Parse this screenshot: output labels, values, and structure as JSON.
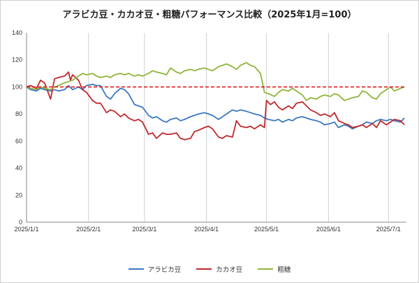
{
  "chart_data": {
    "type": "line",
    "title": "アラビカ豆・カカオ豆・粗糖パフォーマンス比較（2025年1月=100）",
    "xlabel": "",
    "ylabel": "",
    "ylim": [
      0,
      140
    ],
    "yticks": [
      0,
      20,
      40,
      60,
      80,
      100,
      120,
      140
    ],
    "xlim": [
      "2025-01-01",
      "2025-07-10"
    ],
    "xticks": [
      {
        "date": "2025-01-01",
        "label": "2025/1/1"
      },
      {
        "date": "2025-02-01",
        "label": "2025/2/1"
      },
      {
        "date": "2025-03-01",
        "label": "2025/3/1"
      },
      {
        "date": "2025-04-01",
        "label": "2025/4/1"
      },
      {
        "date": "2025-05-01",
        "label": "2025/5/1"
      },
      {
        "date": "2025-06-01",
        "label": "2025/6/1"
      },
      {
        "date": "2025-07-01",
        "label": "2025/7/1"
      }
    ],
    "grid": "vertical",
    "legend": "bottom",
    "reference_line": {
      "value": 100,
      "color": "#e31a1c",
      "style": "dashed"
    },
    "series": [
      {
        "name": "アラビカ豆",
        "color": "#3a78c2",
        "points": [
          [
            "2025-01-01",
            100
          ],
          [
            "2025-01-03",
            98
          ],
          [
            "2025-01-06",
            97
          ],
          [
            "2025-01-08",
            99
          ],
          [
            "2025-01-10",
            98
          ],
          [
            "2025-01-13",
            97
          ],
          [
            "2025-01-15",
            98
          ],
          [
            "2025-01-17",
            97
          ],
          [
            "2025-01-20",
            98
          ],
          [
            "2025-01-22",
            101
          ],
          [
            "2025-01-24",
            98
          ],
          [
            "2025-01-27",
            100
          ],
          [
            "2025-01-29",
            98
          ],
          [
            "2025-01-31",
            101
          ],
          [
            "2025-02-03",
            102
          ],
          [
            "2025-02-05",
            101
          ],
          [
            "2025-02-07",
            101
          ],
          [
            "2025-02-10",
            93
          ],
          [
            "2025-02-12",
            91
          ],
          [
            "2025-02-14",
            95
          ],
          [
            "2025-02-17",
            99
          ],
          [
            "2025-02-19",
            98
          ],
          [
            "2025-02-21",
            95
          ],
          [
            "2025-02-24",
            87
          ],
          [
            "2025-02-26",
            86
          ],
          [
            "2025-02-28",
            85
          ],
          [
            "2025-03-03",
            79
          ],
          [
            "2025-03-05",
            77
          ],
          [
            "2025-03-07",
            78
          ],
          [
            "2025-03-10",
            75
          ],
          [
            "2025-03-12",
            74
          ],
          [
            "2025-03-14",
            76
          ],
          [
            "2025-03-17",
            77
          ],
          [
            "2025-03-19",
            75
          ],
          [
            "2025-03-21",
            76
          ],
          [
            "2025-03-24",
            78
          ],
          [
            "2025-03-26",
            79
          ],
          [
            "2025-03-28",
            80
          ],
          [
            "2025-03-31",
            81
          ],
          [
            "2025-04-02",
            80
          ],
          [
            "2025-04-04",
            79
          ],
          [
            "2025-04-07",
            76
          ],
          [
            "2025-04-09",
            78
          ],
          [
            "2025-04-11",
            80
          ],
          [
            "2025-04-14",
            83
          ],
          [
            "2025-04-16",
            82
          ],
          [
            "2025-04-18",
            83
          ],
          [
            "2025-04-21",
            82
          ],
          [
            "2025-04-23",
            81
          ],
          [
            "2025-04-25",
            80
          ],
          [
            "2025-04-28",
            79
          ],
          [
            "2025-04-30",
            77
          ],
          [
            "2025-05-02",
            76
          ],
          [
            "2025-05-05",
            75
          ],
          [
            "2025-05-07",
            76
          ],
          [
            "2025-05-09",
            74
          ],
          [
            "2025-05-12",
            76
          ],
          [
            "2025-05-14",
            75
          ],
          [
            "2025-05-16",
            77
          ],
          [
            "2025-05-19",
            78
          ],
          [
            "2025-05-21",
            77
          ],
          [
            "2025-05-23",
            76
          ],
          [
            "2025-05-26",
            75
          ],
          [
            "2025-05-28",
            74
          ],
          [
            "2025-05-30",
            72
          ],
          [
            "2025-06-02",
            73
          ],
          [
            "2025-06-04",
            74
          ],
          [
            "2025-06-06",
            70
          ],
          [
            "2025-06-09",
            72
          ],
          [
            "2025-06-11",
            71
          ],
          [
            "2025-06-13",
            69
          ],
          [
            "2025-06-16",
            71
          ],
          [
            "2025-06-18",
            72
          ],
          [
            "2025-06-20",
            74
          ],
          [
            "2025-06-23",
            73
          ],
          [
            "2025-06-25",
            75
          ],
          [
            "2025-06-27",
            76
          ],
          [
            "2025-06-30",
            75
          ],
          [
            "2025-07-02",
            76
          ],
          [
            "2025-07-04",
            75
          ],
          [
            "2025-07-07",
            74
          ],
          [
            "2025-07-09",
            77
          ]
        ]
      },
      {
        "name": "カカオ豆",
        "color": "#c0282d",
        "points": [
          [
            "2025-01-01",
            100
          ],
          [
            "2025-01-03",
            101
          ],
          [
            "2025-01-06",
            99
          ],
          [
            "2025-01-08",
            105
          ],
          [
            "2025-01-10",
            103
          ],
          [
            "2025-01-13",
            91
          ],
          [
            "2025-01-15",
            106
          ],
          [
            "2025-01-17",
            107
          ],
          [
            "2025-01-20",
            108
          ],
          [
            "2025-01-22",
            111
          ],
          [
            "2025-01-23",
            105
          ],
          [
            "2025-01-24",
            109
          ],
          [
            "2025-01-27",
            105
          ],
          [
            "2025-01-29",
            98
          ],
          [
            "2025-01-31",
            96
          ],
          [
            "2025-02-03",
            90
          ],
          [
            "2025-02-05",
            88
          ],
          [
            "2025-02-07",
            88
          ],
          [
            "2025-02-10",
            81
          ],
          [
            "2025-02-12",
            83
          ],
          [
            "2025-02-14",
            82
          ],
          [
            "2025-02-17",
            78
          ],
          [
            "2025-02-19",
            80
          ],
          [
            "2025-02-21",
            77
          ],
          [
            "2025-02-24",
            75
          ],
          [
            "2025-02-26",
            76
          ],
          [
            "2025-02-28",
            74
          ],
          [
            "2025-03-03",
            65
          ],
          [
            "2025-03-05",
            66
          ],
          [
            "2025-03-07",
            62
          ],
          [
            "2025-03-10",
            66
          ],
          [
            "2025-03-12",
            65
          ],
          [
            "2025-03-14",
            65
          ],
          [
            "2025-03-17",
            66
          ],
          [
            "2025-03-19",
            62
          ],
          [
            "2025-03-21",
            61
          ],
          [
            "2025-03-24",
            62
          ],
          [
            "2025-03-26",
            67
          ],
          [
            "2025-03-28",
            68
          ],
          [
            "2025-03-31",
            70
          ],
          [
            "2025-04-02",
            71
          ],
          [
            "2025-04-04",
            69
          ],
          [
            "2025-04-07",
            63
          ],
          [
            "2025-04-09",
            62
          ],
          [
            "2025-04-11",
            64
          ],
          [
            "2025-04-14",
            63
          ],
          [
            "2025-04-16",
            75
          ],
          [
            "2025-04-18",
            71
          ],
          [
            "2025-04-21",
            70
          ],
          [
            "2025-04-23",
            71
          ],
          [
            "2025-04-25",
            69
          ],
          [
            "2025-04-28",
            72
          ],
          [
            "2025-04-30",
            70
          ],
          [
            "2025-05-01",
            90
          ],
          [
            "2025-05-03",
            87
          ],
          [
            "2025-05-05",
            89
          ],
          [
            "2025-05-07",
            85
          ],
          [
            "2025-05-09",
            83
          ],
          [
            "2025-05-12",
            86
          ],
          [
            "2025-05-14",
            84
          ],
          [
            "2025-05-16",
            88
          ],
          [
            "2025-05-19",
            89
          ],
          [
            "2025-05-21",
            86
          ],
          [
            "2025-05-23",
            83
          ],
          [
            "2025-05-26",
            81
          ],
          [
            "2025-05-28",
            79
          ],
          [
            "2025-05-30",
            80
          ],
          [
            "2025-06-02",
            78
          ],
          [
            "2025-06-04",
            81
          ],
          [
            "2025-06-06",
            75
          ],
          [
            "2025-06-09",
            73
          ],
          [
            "2025-06-11",
            72
          ],
          [
            "2025-06-13",
            70
          ],
          [
            "2025-06-16",
            71
          ],
          [
            "2025-06-18",
            72
          ],
          [
            "2025-06-20",
            70
          ],
          [
            "2025-06-23",
            73
          ],
          [
            "2025-06-25",
            70
          ],
          [
            "2025-06-27",
            75
          ],
          [
            "2025-06-30",
            72
          ],
          [
            "2025-07-02",
            74
          ],
          [
            "2025-07-04",
            76
          ],
          [
            "2025-07-07",
            75
          ],
          [
            "2025-07-09",
            72
          ]
        ]
      },
      {
        "name": "粗糖",
        "color": "#8fb53a",
        "points": [
          [
            "2025-01-01",
            100
          ],
          [
            "2025-01-03",
            99
          ],
          [
            "2025-01-06",
            98
          ],
          [
            "2025-01-08",
            100
          ],
          [
            "2025-01-10",
            99
          ],
          [
            "2025-01-13",
            98
          ],
          [
            "2025-01-15",
            100
          ],
          [
            "2025-01-17",
            101
          ],
          [
            "2025-01-20",
            103
          ],
          [
            "2025-01-22",
            104
          ],
          [
            "2025-01-24",
            105
          ],
          [
            "2025-01-27",
            108
          ],
          [
            "2025-01-29",
            110
          ],
          [
            "2025-01-31",
            109
          ],
          [
            "2025-02-03",
            110
          ],
          [
            "2025-02-05",
            108
          ],
          [
            "2025-02-07",
            107
          ],
          [
            "2025-02-10",
            108
          ],
          [
            "2025-02-12",
            107
          ],
          [
            "2025-02-14",
            109
          ],
          [
            "2025-02-17",
            110
          ],
          [
            "2025-02-19",
            109
          ],
          [
            "2025-02-21",
            110
          ],
          [
            "2025-02-24",
            108
          ],
          [
            "2025-02-26",
            109
          ],
          [
            "2025-02-28",
            108
          ],
          [
            "2025-03-03",
            110
          ],
          [
            "2025-03-05",
            112
          ],
          [
            "2025-03-07",
            111
          ],
          [
            "2025-03-10",
            110
          ],
          [
            "2025-03-12",
            109
          ],
          [
            "2025-03-14",
            114
          ],
          [
            "2025-03-17",
            111
          ],
          [
            "2025-03-19",
            110
          ],
          [
            "2025-03-21",
            112
          ],
          [
            "2025-03-24",
            113
          ],
          [
            "2025-03-26",
            112
          ],
          [
            "2025-03-28",
            113
          ],
          [
            "2025-03-31",
            114
          ],
          [
            "2025-04-02",
            113
          ],
          [
            "2025-04-04",
            112
          ],
          [
            "2025-04-07",
            115
          ],
          [
            "2025-04-09",
            116
          ],
          [
            "2025-04-11",
            117
          ],
          [
            "2025-04-14",
            115
          ],
          [
            "2025-04-16",
            113
          ],
          [
            "2025-04-18",
            116
          ],
          [
            "2025-04-21",
            118
          ],
          [
            "2025-04-23",
            116
          ],
          [
            "2025-04-25",
            115
          ],
          [
            "2025-04-28",
            110
          ],
          [
            "2025-04-30",
            96
          ],
          [
            "2025-05-02",
            95
          ],
          [
            "2025-05-05",
            93
          ],
          [
            "2025-05-07",
            96
          ],
          [
            "2025-05-09",
            98
          ],
          [
            "2025-05-12",
            97
          ],
          [
            "2025-05-14",
            99
          ],
          [
            "2025-05-16",
            97
          ],
          [
            "2025-05-19",
            94
          ],
          [
            "2025-05-21",
            90
          ],
          [
            "2025-05-23",
            92
          ],
          [
            "2025-05-26",
            91
          ],
          [
            "2025-05-28",
            93
          ],
          [
            "2025-05-30",
            94
          ],
          [
            "2025-06-02",
            93
          ],
          [
            "2025-06-04",
            95
          ],
          [
            "2025-06-06",
            94
          ],
          [
            "2025-06-09",
            90
          ],
          [
            "2025-06-11",
            91
          ],
          [
            "2025-06-13",
            92
          ],
          [
            "2025-06-16",
            93
          ],
          [
            "2025-06-18",
            97
          ],
          [
            "2025-06-20",
            96
          ],
          [
            "2025-06-23",
            92
          ],
          [
            "2025-06-25",
            91
          ],
          [
            "2025-06-27",
            95
          ],
          [
            "2025-06-30",
            98
          ],
          [
            "2025-07-02",
            100
          ],
          [
            "2025-07-04",
            97
          ],
          [
            "2025-07-07",
            99
          ],
          [
            "2025-07-09",
            100
          ]
        ]
      }
    ]
  }
}
